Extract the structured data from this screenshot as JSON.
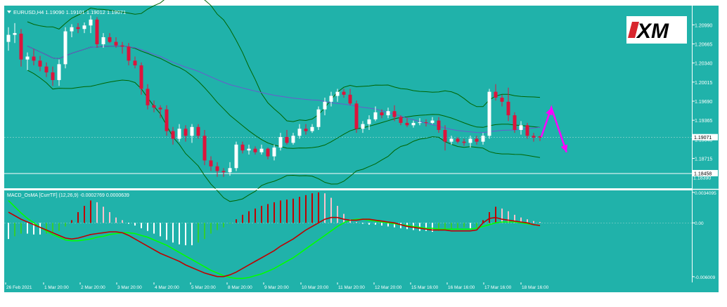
{
  "colors": {
    "background": "#ffffff",
    "plot_background": "#20b2aa",
    "frame": "#ffffff",
    "bull_candle": "#ffffff",
    "bear_candle": "#dc143c",
    "bollinger": "#006400",
    "moving_average": "#6a5acd",
    "macd_signal_line": "#00ff00",
    "macd_main_line": "#c00000",
    "osma_positive_rising": "#c00000",
    "osma_positive_falling": "#ffc0cb",
    "osma_negative_falling": "#ffffff",
    "osma_negative_rising": "#32cd32",
    "arrow": "#ff00ff",
    "price_label_bg": "#ffffff",
    "price_label_text": "#000000"
  },
  "header": {
    "symbol_title": "EURUSD,H4  1.19090 1.19101 1.19012 1.19071",
    "indicator_title": "MACD_OsMA [CurrTF] (12,26,9) -0.0002769 0.0000639"
  },
  "logo": {
    "text": "XM"
  },
  "chart_data": [
    {
      "type": "candlestick",
      "symbol": "EURUSD",
      "timeframe": "H4",
      "title": "EURUSD,H4  1.19090 1.19101 1.19012 1.19071",
      "ylim": [
        1.1823,
        1.2127
      ],
      "y_ticks": [
        1.18715,
        1.1904,
        1.19365,
        1.1969,
        1.20015,
        1.2034,
        1.20665,
        1.2099
      ],
      "y_tick_labels": [
        "1.18715",
        "1.19040",
        "1.19365",
        "1.19690",
        "1.20015",
        "1.20340",
        "1.20665",
        "1.20990"
      ],
      "current_price_label": "1.19071",
      "current_price": 1.19071,
      "level_label": "1.18458",
      "level_price": 1.18458,
      "level_label_2": "1.18390",
      "level_price_2": 1.1839,
      "x_tick_labels": [
        "26 Feb 2021",
        "1 Mar 20:00",
        "2 Mar 20:00",
        "3 Mar 20:00",
        "4 Mar 20:00",
        "5 Mar 20:00",
        "8 Mar 20:00",
        "9 Mar 20:00",
        "10 Mar 20:00",
        "11 Mar 20:00",
        "12 Mar 20:00",
        "15 Mar 16:00",
        "16 Mar 16:00",
        "17 Mar 16:00",
        "18 Mar 16:00"
      ],
      "candles": [
        {
          "o": 1.207,
          "h": 1.2095,
          "l": 1.2055,
          "c": 1.2082
        },
        {
          "o": 1.2082,
          "h": 1.2102,
          "l": 1.2068,
          "c": 1.2085
        },
        {
          "o": 1.2084,
          "h": 1.2092,
          "l": 1.2028,
          "c": 1.204
        },
        {
          "o": 1.204,
          "h": 1.2052,
          "l": 1.2022,
          "c": 1.2045
        },
        {
          "o": 1.2045,
          "h": 1.2058,
          "l": 1.203,
          "c": 1.2038
        },
        {
          "o": 1.2038,
          "h": 1.2046,
          "l": 1.202,
          "c": 1.2028
        },
        {
          "o": 1.2028,
          "h": 1.2035,
          "l": 1.201,
          "c": 1.2018
        },
        {
          "o": 1.2018,
          "h": 1.2028,
          "l": 1.1995,
          "c": 1.2005
        },
        {
          "o": 1.2005,
          "h": 1.204,
          "l": 1.1995,
          "c": 1.2032
        },
        {
          "o": 1.2032,
          "h": 1.2095,
          "l": 1.2025,
          "c": 1.2088
        },
        {
          "o": 1.2088,
          "h": 1.21,
          "l": 1.2078,
          "c": 1.2095
        },
        {
          "o": 1.2095,
          "h": 1.2102,
          "l": 1.2085,
          "c": 1.2092
        },
        {
          "o": 1.2092,
          "h": 1.2103,
          "l": 1.2085,
          "c": 1.2098
        },
        {
          "o": 1.2098,
          "h": 1.2115,
          "l": 1.2085,
          "c": 1.2108
        },
        {
          "o": 1.2108,
          "h": 1.2112,
          "l": 1.206,
          "c": 1.2066
        },
        {
          "o": 1.2066,
          "h": 1.2085,
          "l": 1.206,
          "c": 1.2078
        },
        {
          "o": 1.2078,
          "h": 1.2085,
          "l": 1.2068,
          "c": 1.207
        },
        {
          "o": 1.207,
          "h": 1.2078,
          "l": 1.206,
          "c": 1.2064
        },
        {
          "o": 1.2064,
          "h": 1.207,
          "l": 1.205,
          "c": 1.2062
        },
        {
          "o": 1.2062,
          "h": 1.2068,
          "l": 1.203,
          "c": 1.2038
        },
        {
          "o": 1.2038,
          "h": 1.2045,
          "l": 1.2025,
          "c": 1.203
        },
        {
          "o": 1.203,
          "h": 1.2035,
          "l": 1.198,
          "c": 1.199
        },
        {
          "o": 1.199,
          "h": 1.1998,
          "l": 1.1955,
          "c": 1.1962
        },
        {
          "o": 1.1962,
          "h": 1.197,
          "l": 1.195,
          "c": 1.1958
        },
        {
          "o": 1.1958,
          "h": 1.1962,
          "l": 1.194,
          "c": 1.1955
        },
        {
          "o": 1.1955,
          "h": 1.1962,
          "l": 1.191,
          "c": 1.1918
        },
        {
          "o": 1.1918,
          "h": 1.1925,
          "l": 1.1895,
          "c": 1.1905
        },
        {
          "o": 1.1905,
          "h": 1.193,
          "l": 1.19,
          "c": 1.1922
        },
        {
          "o": 1.1922,
          "h": 1.1928,
          "l": 1.19,
          "c": 1.191
        },
        {
          "o": 1.191,
          "h": 1.193,
          "l": 1.1898,
          "c": 1.1925
        },
        {
          "o": 1.1925,
          "h": 1.193,
          "l": 1.1905,
          "c": 1.191
        },
        {
          "o": 1.191,
          "h": 1.192,
          "l": 1.186,
          "c": 1.1868
        },
        {
          "o": 1.1868,
          "h": 1.1875,
          "l": 1.185,
          "c": 1.1858
        },
        {
          "o": 1.1858,
          "h": 1.1865,
          "l": 1.184,
          "c": 1.185
        },
        {
          "o": 1.185,
          "h": 1.1855,
          "l": 1.184,
          "c": 1.1848
        },
        {
          "o": 1.1848,
          "h": 1.1865,
          "l": 1.1842,
          "c": 1.1855
        },
        {
          "o": 1.1855,
          "h": 1.19,
          "l": 1.185,
          "c": 1.1895
        },
        {
          "o": 1.1895,
          "h": 1.19,
          "l": 1.188,
          "c": 1.1885
        },
        {
          "o": 1.1885,
          "h": 1.1895,
          "l": 1.1878,
          "c": 1.1888
        },
        {
          "o": 1.1888,
          "h": 1.1892,
          "l": 1.1878,
          "c": 1.1882
        },
        {
          "o": 1.1882,
          "h": 1.1895,
          "l": 1.1878,
          "c": 1.1888
        },
        {
          "o": 1.1888,
          "h": 1.189,
          "l": 1.187,
          "c": 1.1875
        },
        {
          "o": 1.1875,
          "h": 1.1895,
          "l": 1.1868,
          "c": 1.189
        },
        {
          "o": 1.189,
          "h": 1.1915,
          "l": 1.1885,
          "c": 1.1908
        },
        {
          "o": 1.1908,
          "h": 1.192,
          "l": 1.1895,
          "c": 1.1898
        },
        {
          "o": 1.1898,
          "h": 1.1915,
          "l": 1.1895,
          "c": 1.191
        },
        {
          "o": 1.191,
          "h": 1.193,
          "l": 1.1905,
          "c": 1.1922
        },
        {
          "o": 1.1922,
          "h": 1.193,
          "l": 1.1912,
          "c": 1.1918
        },
        {
          "o": 1.1918,
          "h": 1.193,
          "l": 1.1915,
          "c": 1.1925
        },
        {
          "o": 1.1925,
          "h": 1.196,
          "l": 1.192,
          "c": 1.1955
        },
        {
          "o": 1.1955,
          "h": 1.1975,
          "l": 1.1945,
          "c": 1.1968
        },
        {
          "o": 1.1968,
          "h": 1.1985,
          "l": 1.196,
          "c": 1.1978
        },
        {
          "o": 1.1978,
          "h": 1.199,
          "l": 1.1968,
          "c": 1.1985
        },
        {
          "o": 1.1985,
          "h": 1.199,
          "l": 1.1975,
          "c": 1.198
        },
        {
          "o": 1.198,
          "h": 1.199,
          "l": 1.1962,
          "c": 1.1965
        },
        {
          "o": 1.1965,
          "h": 1.197,
          "l": 1.1915,
          "c": 1.1922
        },
        {
          "o": 1.1922,
          "h": 1.1935,
          "l": 1.1915,
          "c": 1.193
        },
        {
          "o": 1.193,
          "h": 1.1945,
          "l": 1.192,
          "c": 1.1938
        },
        {
          "o": 1.1938,
          "h": 1.196,
          "l": 1.1935,
          "c": 1.195
        },
        {
          "o": 1.195,
          "h": 1.1955,
          "l": 1.194,
          "c": 1.1945
        },
        {
          "o": 1.1945,
          "h": 1.1958,
          "l": 1.194,
          "c": 1.1952
        },
        {
          "o": 1.1952,
          "h": 1.1962,
          "l": 1.1935,
          "c": 1.1942
        },
        {
          "o": 1.1942,
          "h": 1.1945,
          "l": 1.1928,
          "c": 1.1932
        },
        {
          "o": 1.1932,
          "h": 1.194,
          "l": 1.1925,
          "c": 1.1928
        },
        {
          "o": 1.1928,
          "h": 1.1936,
          "l": 1.1924,
          "c": 1.1932
        },
        {
          "o": 1.1932,
          "h": 1.194,
          "l": 1.1928,
          "c": 1.1933
        },
        {
          "o": 1.1933,
          "h": 1.1938,
          "l": 1.1926,
          "c": 1.1932
        },
        {
          "o": 1.1932,
          "h": 1.1942,
          "l": 1.193,
          "c": 1.1936
        },
        {
          "o": 1.1936,
          "h": 1.1942,
          "l": 1.1915,
          "c": 1.192
        },
        {
          "o": 1.192,
          "h": 1.1928,
          "l": 1.1885,
          "c": 1.19
        },
        {
          "o": 1.19,
          "h": 1.191,
          "l": 1.1895,
          "c": 1.1905
        },
        {
          "o": 1.1905,
          "h": 1.1908,
          "l": 1.1897,
          "c": 1.19
        },
        {
          "o": 1.19,
          "h": 1.1905,
          "l": 1.1893,
          "c": 1.1898
        },
        {
          "o": 1.1898,
          "h": 1.191,
          "l": 1.189,
          "c": 1.1905
        },
        {
          "o": 1.1905,
          "h": 1.191,
          "l": 1.1895,
          "c": 1.19
        },
        {
          "o": 1.19,
          "h": 1.1915,
          "l": 1.1895,
          "c": 1.191
        },
        {
          "o": 1.191,
          "h": 1.199,
          "l": 1.1905,
          "c": 1.1985
        },
        {
          "o": 1.1985,
          "h": 1.1998,
          "l": 1.197,
          "c": 1.1975
        },
        {
          "o": 1.1975,
          "h": 1.198,
          "l": 1.196,
          "c": 1.1968
        },
        {
          "o": 1.1968,
          "h": 1.1992,
          "l": 1.1935,
          "c": 1.1945
        },
        {
          "o": 1.1945,
          "h": 1.195,
          "l": 1.1915,
          "c": 1.192
        },
        {
          "o": 1.192,
          "h": 1.1935,
          "l": 1.1912,
          "c": 1.1928
        },
        {
          "o": 1.1928,
          "h": 1.1932,
          "l": 1.1905,
          "c": 1.191
        },
        {
          "o": 1.191,
          "h": 1.1915,
          "l": 1.19,
          "c": 1.1907
        },
        {
          "o": 1.1909,
          "h": 1.19101,
          "l": 1.19012,
          "c": 1.19071
        }
      ],
      "forecast_arrow_points": [
        [
          84.2,
          1.1908
        ],
        [
          85.8,
          1.1958
        ],
        [
          88.2,
          1.1882
        ]
      ]
    },
    {
      "type": "macd_osma",
      "title": "MACD_OsMA [CurrTF] (12,26,9) -0.0002769 0.0000639",
      "params": [
        12,
        26,
        9
      ],
      "ylim": [
        -0.00665,
        0.00355
      ],
      "y_ticks": [
        0.0034095,
        0.0,
        -0.006009
      ],
      "y_tick_labels": [
        "0.0034095",
        "0.00",
        "-0.006009"
      ],
      "osma": [
        -0.0018,
        -0.0015,
        -0.0012,
        -0.0012,
        -0.0013,
        -0.0013,
        -0.0012,
        -0.0011,
        -0.0009,
        -0.0004,
        0.0003,
        0.0012,
        0.0019,
        0.0025,
        0.0023,
        0.0018,
        0.0012,
        0.0006,
        0.0003,
        -0.0001,
        -0.0003,
        -0.0006,
        -0.0009,
        -0.0012,
        -0.0015,
        -0.0019,
        -0.0022,
        -0.0024,
        -0.0025,
        -0.0025,
        -0.0022,
        -0.0018,
        -0.0012,
        -0.0008,
        -0.0005,
        -0.0001,
        0.0004,
        0.0009,
        0.0013,
        0.0016,
        0.0019,
        0.0021,
        0.0023,
        0.0025,
        0.0026,
        0.0027,
        0.0029,
        0.0031,
        0.0033,
        0.0034,
        0.0033,
        0.0028,
        0.0019,
        0.001,
        0.0004,
        0.0001,
        -0.0001,
        -0.0002,
        -0.0002,
        -0.0003,
        -0.0004,
        -0.0005,
        -0.0006,
        -0.0007,
        -0.0008,
        -0.0009,
        -0.0009,
        -0.001,
        -0.0009,
        -0.0008,
        -0.0007,
        -0.0006,
        -0.0005,
        -0.0006,
        -0.0005,
        0.0003,
        0.0012,
        0.0018,
        0.0016,
        0.0013,
        0.0009,
        0.0006,
        0.0004,
        0.0002,
        0.0001
      ],
      "macd": [
        0.0012,
        0.0008,
        0.0004,
        0.0001,
        -0.0002,
        -0.0005,
        -0.0008,
        -0.0011,
        -0.0014,
        -0.0017,
        -0.0018,
        -0.0017,
        -0.0015,
        -0.0013,
        -0.0012,
        -0.0011,
        -0.001,
        -0.001,
        -0.0011,
        -0.0014,
        -0.0018,
        -0.0022,
        -0.0026,
        -0.003,
        -0.0034,
        -0.0037,
        -0.004,
        -0.0043,
        -0.0047,
        -0.005,
        -0.0053,
        -0.0056,
        -0.0058,
        -0.006,
        -0.006,
        -0.0058,
        -0.0055,
        -0.0051,
        -0.0047,
        -0.0043,
        -0.0039,
        -0.0035,
        -0.0031,
        -0.0026,
        -0.0022,
        -0.0018,
        -0.0013,
        -0.0008,
        -0.0004,
        0.0,
        0.0004,
        0.0006,
        0.0006,
        0.0004,
        0.0003,
        0.0003,
        0.0004,
        0.0004,
        0.0003,
        0.0002,
        0.0001,
        0.0,
        -0.0002,
        -0.0004,
        -0.0005,
        -0.0006,
        -0.0007,
        -0.0008,
        -0.0008,
        -0.0008,
        -0.0009,
        -0.0009,
        -0.0009,
        -0.0009,
        -0.0008,
        0.0,
        0.0005,
        0.0006,
        0.0004,
        0.0003,
        0.0002,
        0.0001,
        0.0,
        -0.0002,
        -0.0003
      ],
      "signal": [
        0.0025,
        0.0018,
        0.0011,
        0.0005,
        0.0,
        -0.0005,
        -0.0009,
        -0.0013,
        -0.0016,
        -0.0019,
        -0.002,
        -0.002,
        -0.0019,
        -0.0018,
        -0.0016,
        -0.0015,
        -0.0013,
        -0.0012,
        -0.0011,
        -0.0011,
        -0.0012,
        -0.0014,
        -0.0016,
        -0.0019,
        -0.0022,
        -0.0025,
        -0.0029,
        -0.0033,
        -0.0037,
        -0.0041,
        -0.0045,
        -0.0049,
        -0.0053,
        -0.0056,
        -0.0059,
        -0.0061,
        -0.0062,
        -0.0062,
        -0.0061,
        -0.0059,
        -0.0057,
        -0.0054,
        -0.0051,
        -0.0047,
        -0.0043,
        -0.0039,
        -0.0034,
        -0.0029,
        -0.0024,
        -0.0019,
        -0.0014,
        -0.0009,
        -0.0004,
        0.0,
        0.0003,
        0.0004,
        0.0004,
        0.0003,
        0.0002,
        0.0001,
        0.0,
        -0.0001,
        -0.0002,
        -0.0003,
        -0.0004,
        -0.0005,
        -0.0006,
        -0.0006,
        -0.0007,
        -0.0007,
        -0.0007,
        -0.0007,
        -0.0007,
        -0.0007,
        -0.0006,
        -0.0004,
        -0.0002,
        0.0,
        0.0001,
        0.0001,
        0.0001,
        0.0,
        -0.0001,
        -0.0002,
        -0.0003
      ]
    }
  ]
}
